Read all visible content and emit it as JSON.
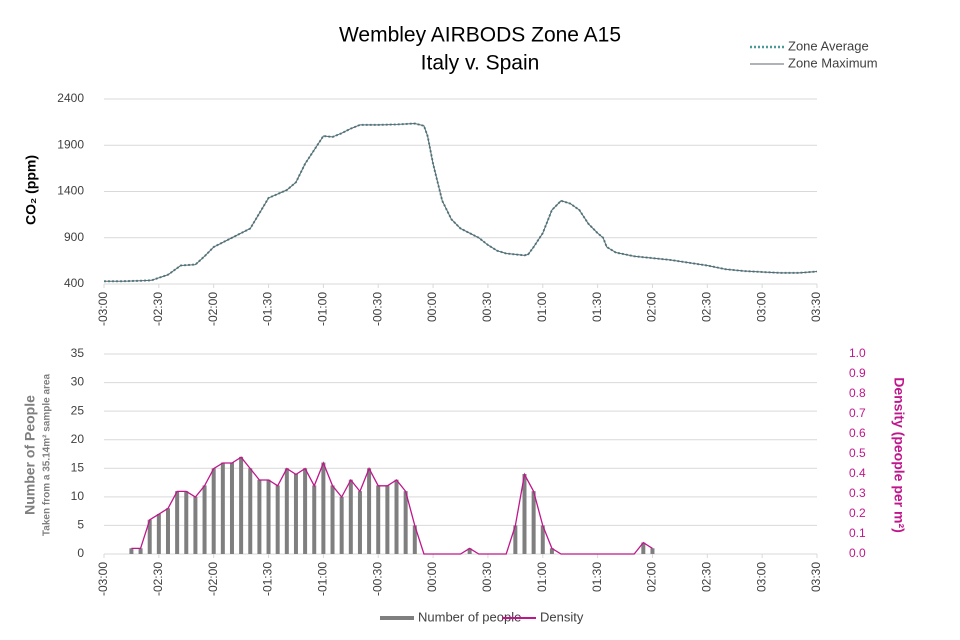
{
  "chart_data": [
    {
      "type": "line",
      "title": "Wembley AIRBODS Zone A15",
      "subtitle": "Italy v. Spain",
      "ylabel": "CO₂ (ppm)",
      "legend": "upper right",
      "grid": true,
      "xlim": [
        -180,
        210
      ],
      "xticks": [
        {
          "value": -180,
          "label": "-03:00"
        },
        {
          "value": -150,
          "label": "-02:30"
        },
        {
          "value": -120,
          "label": "-02:00"
        },
        {
          "value": -90,
          "label": "-01:30"
        },
        {
          "value": -60,
          "label": "-01:00"
        },
        {
          "value": -30,
          "label": "-00:30"
        },
        {
          "value": 0,
          "label": "00:00"
        },
        {
          "value": 30,
          "label": "00:30"
        },
        {
          "value": 60,
          "label": "01:00"
        },
        {
          "value": 90,
          "label": "01:30"
        },
        {
          "value": 120,
          "label": "02:00"
        },
        {
          "value": 150,
          "label": "02:30"
        },
        {
          "value": 180,
          "label": "03:00"
        },
        {
          "value": 210,
          "label": "03:30"
        }
      ],
      "ylim": [
        400,
        2400
      ],
      "yticks": [
        400,
        900,
        1400,
        1900,
        2400
      ],
      "x": [
        -180,
        -170,
        -160,
        -154,
        -145,
        -138,
        -130,
        -125,
        -120,
        -110,
        -100,
        -90,
        -80,
        -75,
        -70,
        -65,
        -60,
        -55,
        -50,
        -45,
        -40,
        -30,
        -20,
        -10,
        -5,
        -3,
        0,
        5,
        10,
        15,
        20,
        25,
        30,
        35,
        40,
        45,
        50,
        52,
        55,
        60,
        65,
        70,
        75,
        80,
        85,
        90,
        93,
        95,
        100,
        105,
        110,
        120,
        130,
        140,
        150,
        160,
        170,
        180,
        190,
        200,
        210
      ],
      "series": [
        {
          "name": "Zone Average",
          "color": "#4a9a96",
          "style": "dotted",
          "values": [
            430,
            430,
            435,
            440,
            500,
            600,
            610,
            700,
            800,
            900,
            1000,
            1330,
            1416,
            1500,
            1700,
            1850,
            2000,
            1990,
            2030,
            2080,
            2120,
            2120,
            2125,
            2135,
            2110,
            2000,
            1700,
            1300,
            1100,
            1000,
            950,
            900,
            822,
            760,
            730,
            720,
            710,
            720,
            800,
            950,
            1200,
            1300,
            1270,
            1200,
            1050,
            950,
            900,
            800,
            740,
            720,
            700,
            680,
            660,
            630,
            600,
            560,
            540,
            530,
            520,
            520,
            535
          ]
        },
        {
          "name": "Zone Maximum",
          "color": "#5f6470",
          "style": "solid",
          "values": [
            430,
            430,
            435,
            440,
            500,
            600,
            610,
            700,
            800,
            900,
            1000,
            1330,
            1416,
            1500,
            1700,
            1850,
            2000,
            1990,
            2030,
            2080,
            2120,
            2120,
            2125,
            2135,
            2110,
            2000,
            1700,
            1300,
            1100,
            1000,
            950,
            900,
            822,
            760,
            730,
            720,
            710,
            720,
            800,
            950,
            1200,
            1300,
            1270,
            1200,
            1050,
            950,
            900,
            800,
            740,
            720,
            700,
            680,
            660,
            630,
            600,
            560,
            540,
            530,
            520,
            520,
            535
          ]
        }
      ]
    },
    {
      "type": "bar",
      "ylabel": "Number of People",
      "ylabel_note": "Taken from a 35.14m² sample area",
      "y2label": "Density (people per m²)",
      "legend": "bottom",
      "grid": true,
      "xlim": [
        -180,
        210
      ],
      "xticks": [
        {
          "value": -180,
          "label": "-03:00"
        },
        {
          "value": -150,
          "label": "-02:30"
        },
        {
          "value": -120,
          "label": "-02:00"
        },
        {
          "value": -90,
          "label": "-01:30"
        },
        {
          "value": -60,
          "label": "-01:00"
        },
        {
          "value": -30,
          "label": "-00:30"
        },
        {
          "value": 0,
          "label": "00:00"
        },
        {
          "value": 30,
          "label": "00:30"
        },
        {
          "value": 60,
          "label": "01:00"
        },
        {
          "value": 90,
          "label": "01:30"
        },
        {
          "value": 120,
          "label": "02:00"
        },
        {
          "value": 150,
          "label": "02:30"
        },
        {
          "value": 180,
          "label": "03:00"
        },
        {
          "value": 210,
          "label": "03:30"
        }
      ],
      "ylim": [
        0,
        35
      ],
      "yticks": [
        0,
        5,
        10,
        15,
        20,
        25,
        30,
        35
      ],
      "y2lim": [
        0,
        1
      ],
      "y2ticks": [
        {
          "value": 0,
          "label": "0.0"
        },
        0.1,
        0.2,
        0.3,
        0.4,
        0.5,
        0.6,
        0.7,
        0.8,
        0.9,
        {
          "value": 1,
          "label": "1.0"
        }
      ],
      "x": [
        -165,
        -160,
        -155,
        -150,
        -145,
        -140,
        -135,
        -130,
        -125,
        -120,
        -115,
        -110,
        -105,
        -100,
        -95,
        -90,
        -85,
        -80,
        -75,
        -70,
        -65,
        -60,
        -55,
        -50,
        -45,
        -40,
        -35,
        -30,
        -25,
        -20,
        -15,
        -10,
        -5,
        0,
        5,
        10,
        15,
        20,
        25,
        30,
        35,
        40,
        45,
        50,
        55,
        60,
        65,
        70,
        75,
        80,
        85,
        90,
        95,
        100,
        105,
        110,
        115,
        120
      ],
      "series": [
        {
          "name": "Number of people",
          "color": "#7f7f7f",
          "type": "bar",
          "values": [
            1,
            1,
            6,
            7,
            8,
            11,
            11,
            10,
            12,
            15,
            16,
            16,
            17,
            15,
            13,
            13,
            12,
            15,
            14,
            15,
            12,
            16,
            12,
            10,
            13,
            11,
            15,
            12,
            12,
            13,
            11,
            5,
            0,
            0,
            0,
            0,
            0,
            1,
            0,
            0,
            0,
            0,
            5,
            14,
            11,
            5,
            1,
            0,
            0,
            0,
            0,
            0,
            0,
            0,
            0,
            0,
            2,
            1
          ]
        },
        {
          "name": "Density",
          "color": "#c0168c",
          "type": "line",
          "axis": "y2",
          "values": [
            0.028,
            0.028,
            0.171,
            0.199,
            0.228,
            0.313,
            0.313,
            0.285,
            0.341,
            0.427,
            0.455,
            0.455,
            0.484,
            0.427,
            0.37,
            0.37,
            0.341,
            0.427,
            0.398,
            0.427,
            0.341,
            0.455,
            0.341,
            0.285,
            0.37,
            0.313,
            0.427,
            0.341,
            0.341,
            0.37,
            0.313,
            0.142,
            0,
            0,
            0,
            0,
            0,
            0.028,
            0,
            0,
            0,
            0,
            0.142,
            0.398,
            0.313,
            0.142,
            0.028,
            0,
            0,
            0,
            0,
            0,
            0,
            0,
            0,
            0,
            0.057,
            0.028
          ]
        }
      ]
    }
  ]
}
